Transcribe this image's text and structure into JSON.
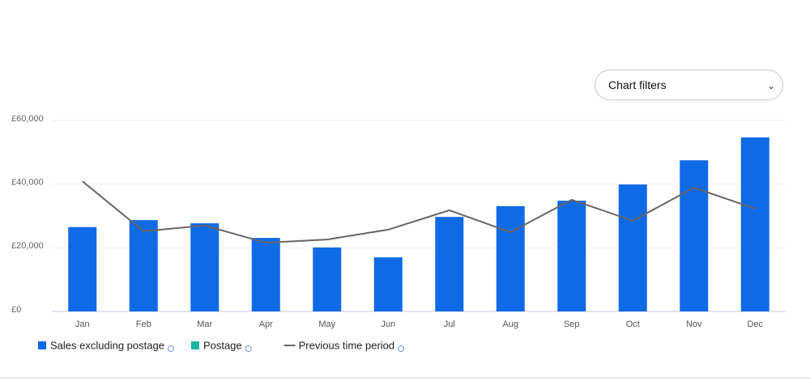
{
  "chart_filters": "Chart filters",
  "chart_data": {
    "type": "bar",
    "categories": [
      "Jan",
      "Feb",
      "Mar",
      "Apr",
      "May",
      "Jun",
      "Jul",
      "Aug",
      "Sep",
      "Oct",
      "Nov",
      "Dec"
    ],
    "series": [
      {
        "name": "Sales excluding postage",
        "type": "bar",
        "color": "#0f6ae6",
        "values": [
          26500,
          28700,
          27700,
          23100,
          20100,
          17000,
          29700,
          33100,
          34800,
          39900,
          47500,
          54700
        ]
      },
      {
        "name": "Postage",
        "type": "bar",
        "color": "#17b3a3",
        "values": [
          0,
          0,
          0,
          0,
          0,
          0,
          0,
          0,
          0,
          0,
          0,
          0
        ]
      },
      {
        "name": "Previous time period",
        "type": "line",
        "color": "#6b6464",
        "values": [
          40900,
          25200,
          27000,
          21600,
          22600,
          25700,
          31800,
          24900,
          35100,
          28500,
          38900,
          32300
        ]
      }
    ],
    "ylim": [
      0,
      60000
    ],
    "yticks": [
      {
        "value": 0,
        "label": "£0"
      },
      {
        "value": 20000,
        "label": "£20,000"
      },
      {
        "value": 40000,
        "label": "£40,000"
      },
      {
        "value": 60000,
        "label": "£60,000"
      }
    ],
    "grid": true,
    "stacked": true
  }
}
